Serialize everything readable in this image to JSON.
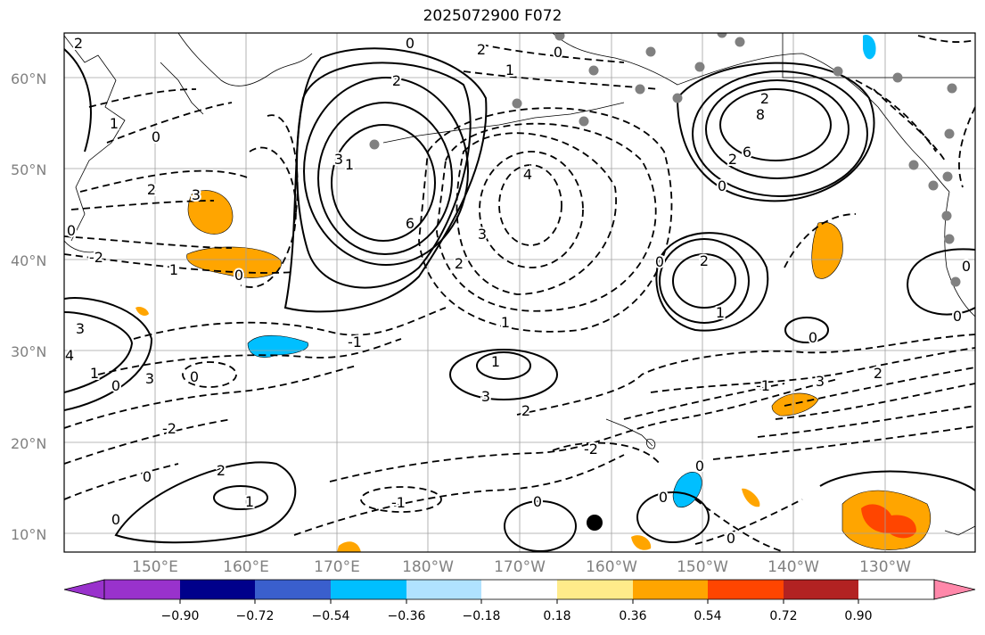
{
  "title": "2025072900 F072",
  "lat_labels": [
    "60°N",
    "50°N",
    "40°N",
    "30°N",
    "20°N",
    "10°N"
  ],
  "lon_labels": [
    "150°E",
    "160°E",
    "170°E",
    "180°W",
    "170°W",
    "160°W",
    "150°W",
    "140°W",
    "130°W"
  ],
  "contour_labels": [
    "2",
    "0",
    "2",
    "2",
    "1",
    "0",
    "6",
    "3",
    "8",
    "2",
    "1",
    "0",
    "2",
    "4",
    "6",
    "3",
    "0",
    "2",
    "2",
    "3",
    "1",
    "0",
    "0",
    "2",
    "1",
    "-2",
    "1",
    "0",
    "1",
    "3",
    "4",
    "3",
    "-1",
    "0",
    "1",
    "0",
    "1",
    "3",
    "-2",
    "3",
    "2",
    "-1",
    "2",
    "0",
    "0",
    "2",
    "-2",
    "0",
    "1",
    "-1",
    "0",
    "0",
    "0",
    "0",
    "0",
    "0"
  ],
  "colorbar": {
    "tick_labels": [
      "−0.90",
      "−0.72",
      "−0.54",
      "−0.36",
      "−0.18",
      "0.18",
      "0.36",
      "0.54",
      "0.72",
      "0.90"
    ],
    "colors": [
      "#9932cc",
      "#00008b",
      "#3a5fcd",
      "#00bfff",
      "#b0e2ff",
      "#ffffff",
      "#ffeb8a",
      "#ffa500",
      "#ff4500",
      "#b22222",
      "#ff88aa"
    ]
  },
  "colors": {
    "contour": "#000000",
    "grid": "#a0a0a0",
    "station": "#808080",
    "tick_text": "#808080"
  }
}
